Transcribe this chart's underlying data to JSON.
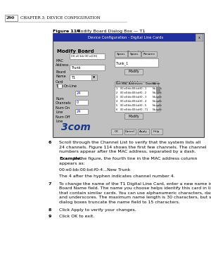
{
  "page_num": "290",
  "chapter_header": "CHAPTER 3: DEVICE CONFIGURATION",
  "figure_caption_bold": "Figure 114",
  "figure_caption_rest": "  Modify Board Dialog Box — T1",
  "bg_color": "#ffffff",
  "dialog_bg": "#c0c0c0",
  "dialog_title_bg": "#2030a0",
  "dialog_title_text": "Device Configuration - Digital Line Cards",
  "dialog_title_color": "#ffffff",
  "logo_text": "3com",
  "text_color": "#000000",
  "body_items": [
    {
      "num": "6",
      "bold_prefix": "",
      "lines": [
        "Scroll through the Channel List to verify that the system lists all",
        "24 channels. Figure 114 shows the first few channels. The channel",
        "numbers appear after the MAC address, separated by a dash."
      ]
    },
    {
      "num": "",
      "bold_prefix": "Example:",
      "lines": [
        " In the figure, the fourth line in the MAC address column",
        "appears as:"
      ]
    },
    {
      "num": "",
      "bold_prefix": "",
      "lines": [
        "00:e0:bb:00:bd:f0-4...New Trunk"
      ]
    },
    {
      "num": "",
      "bold_prefix": "",
      "lines": [
        "The 4 after the hyphen indicates channel number 4."
      ]
    },
    {
      "num": "7",
      "bold_prefix": "",
      "lines": [
        "To change the name of the T1 Digital Line Card, enter a new name in the",
        "Board Name field. The name you choose helps identify this card in lists",
        "that contain similar cards. You can use alphanumeric characters, dashes,",
        "and underscores. The maximum name length is 30 characters, but some",
        "dialog boxes truncate the name field to 15 characters."
      ]
    },
    {
      "num": "8",
      "bold_prefix": "",
      "lines": [
        "Click Apply to verify your changes."
      ]
    },
    {
      "num": "9",
      "bold_prefix": "",
      "lines": [
        "Click OK to exit."
      ]
    }
  ]
}
